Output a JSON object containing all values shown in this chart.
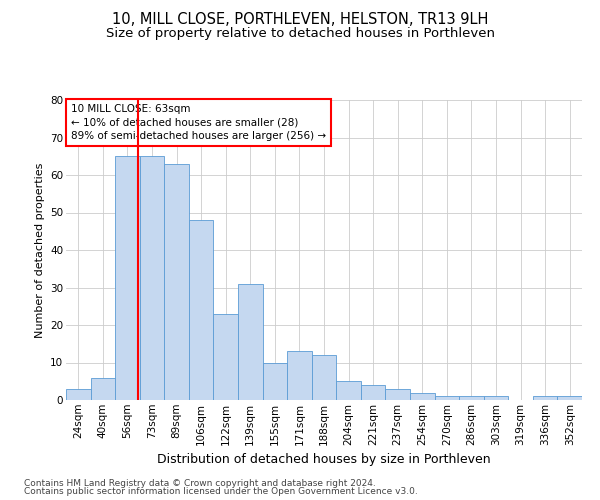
{
  "title": "10, MILL CLOSE, PORTHLEVEN, HELSTON, TR13 9LH",
  "subtitle": "Size of property relative to detached houses in Porthleven",
  "xlabel": "Distribution of detached houses by size in Porthleven",
  "ylabel": "Number of detached properties",
  "categories": [
    "24sqm",
    "40sqm",
    "56sqm",
    "73sqm",
    "89sqm",
    "106sqm",
    "122sqm",
    "139sqm",
    "155sqm",
    "171sqm",
    "188sqm",
    "204sqm",
    "221sqm",
    "237sqm",
    "254sqm",
    "270sqm",
    "286sqm",
    "303sqm",
    "319sqm",
    "336sqm",
    "352sqm"
  ],
  "values": [
    3,
    6,
    65,
    65,
    63,
    48,
    23,
    31,
    10,
    13,
    12,
    5,
    4,
    3,
    2,
    1,
    1,
    1,
    0,
    1,
    1
  ],
  "bar_color": "#c5d8f0",
  "bar_edge_color": "#5b9bd5",
  "annotation_line1": "10 MILL CLOSE: 63sqm",
  "annotation_line2": "← 10% of detached houses are smaller (28)",
  "annotation_line3": "89% of semi-detached houses are larger (256) →",
  "ylim": [
    0,
    80
  ],
  "yticks": [
    0,
    10,
    20,
    30,
    40,
    50,
    60,
    70,
    80
  ],
  "grid_color": "#cccccc",
  "background_color": "#ffffff",
  "footnote1": "Contains HM Land Registry data © Crown copyright and database right 2024.",
  "footnote2": "Contains public sector information licensed under the Open Government Licence v3.0.",
  "title_fontsize": 10.5,
  "subtitle_fontsize": 9.5,
  "tick_fontsize": 7.5,
  "ylabel_fontsize": 8,
  "xlabel_fontsize": 9,
  "footnote_fontsize": 6.5
}
